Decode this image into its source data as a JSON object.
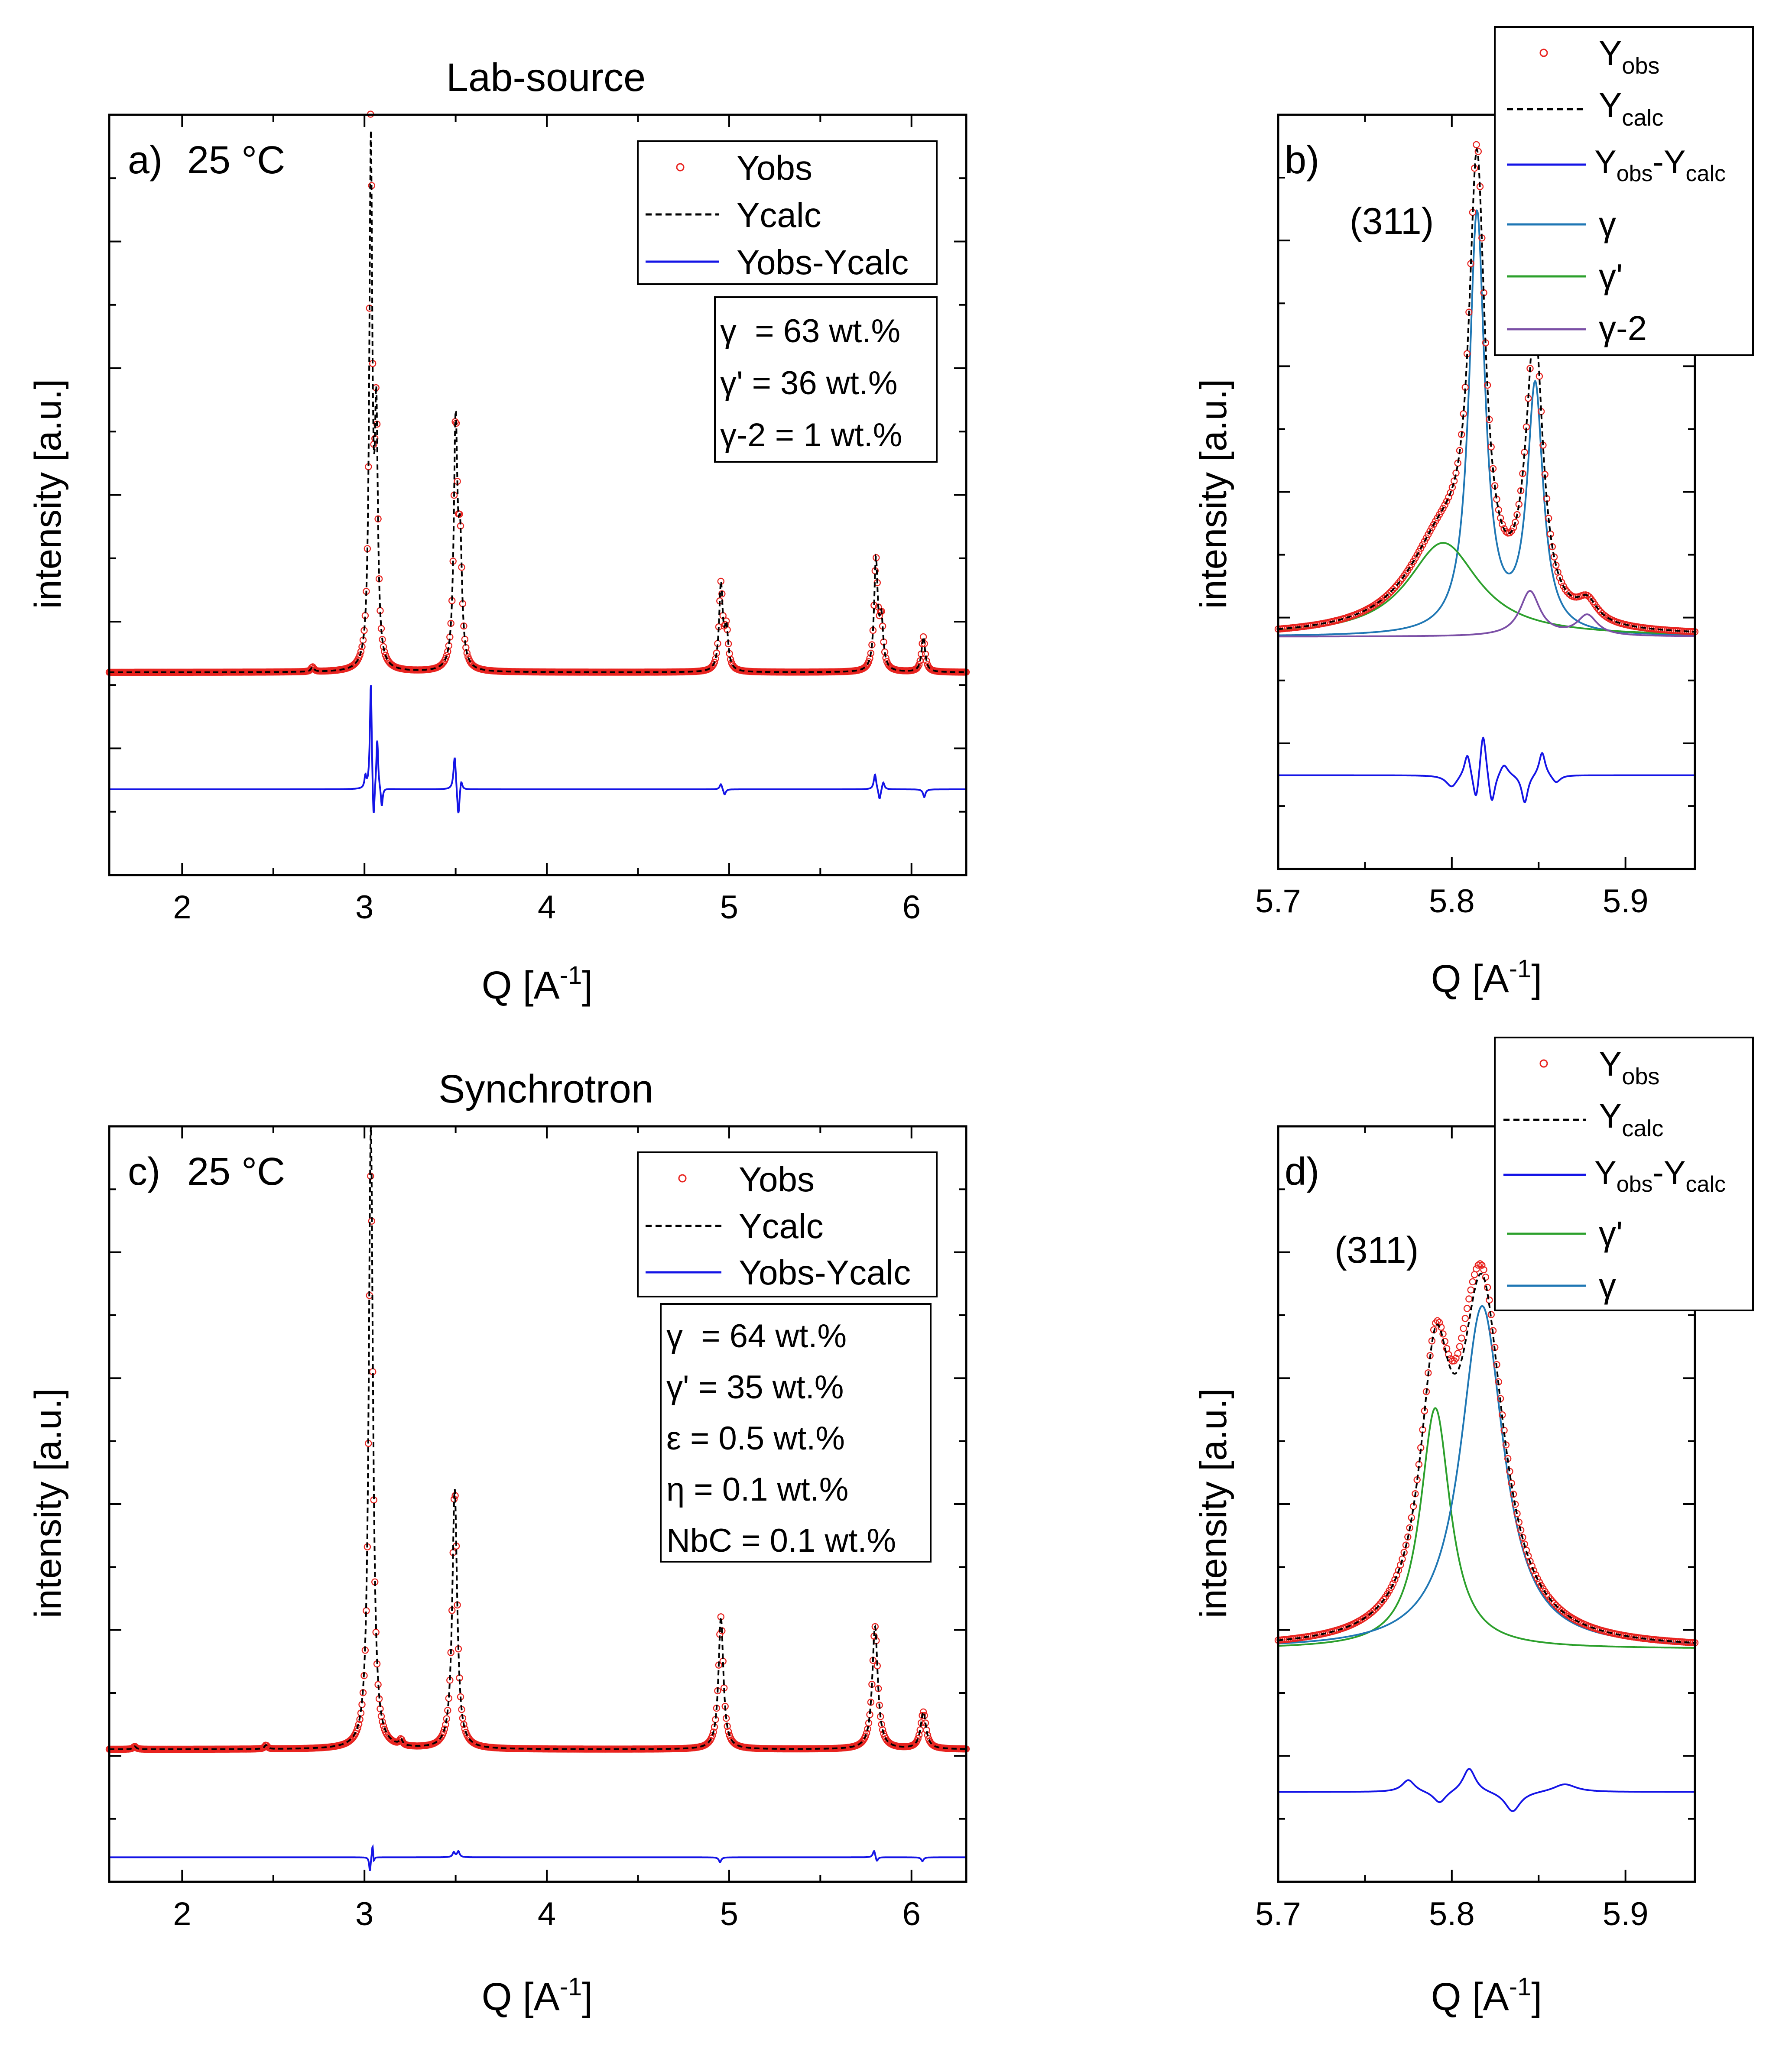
{
  "figure": {
    "titles": {
      "top": "Lab-source",
      "bottom": "Synchrotron"
    },
    "panel_tags": {
      "a": "a)",
      "b": "b)",
      "c": "c)",
      "d": "d)"
    },
    "temperature": "25 °C",
    "peak_label": "(311)",
    "y_axis_label": "intensity [a.u.]",
    "x_axis_label": {
      "main": "Q [A",
      "sup": "-1",
      "close": "]"
    }
  },
  "colors": {
    "obs": "#e8231f",
    "calc": "#000000",
    "diff": "#1414e6",
    "gamma": "#1f77b4",
    "gamma_prime": "#2ca02c",
    "gamma2": "#7b4fa6"
  },
  "legends": {
    "main": {
      "obs": "Yobs",
      "calc": "Ycalc",
      "diff": "Yobs-Ycalc"
    },
    "zoom_b": [
      "Yobs",
      "Ycalc",
      "Yobs-Ycalc",
      "γ",
      "γ'",
      "γ-2"
    ],
    "zoom_d": [
      "Yobs",
      "Ycalc",
      "Yobs-Ycalc",
      "γ'",
      "γ"
    ]
  },
  "phase_boxes": {
    "a": [
      "γ  = 63 wt.%",
      "γ' = 36 wt.%",
      "γ-2 = 1 wt.%"
    ],
    "c": [
      "γ  = 64 wt.%",
      "γ' = 35 wt.%",
      "ε = 0.5 wt.%",
      "η = 0.1 wt.%",
      "NbC = 0.1 wt.%"
    ]
  },
  "chart_data": [
    {
      "id": "a",
      "type": "line",
      "title": "Lab-source",
      "xlabel": "Q [A-1]",
      "ylabel": "intensity [a.u.]",
      "xlim": [
        1.6,
        6.3
      ],
      "ylim": [
        -0.5,
        1.45
      ],
      "xticks": [
        2,
        3,
        4,
        5,
        6
      ],
      "baseline": 0.02,
      "diff_offset": -0.28,
      "peaks": [
        {
          "q": 3.035,
          "h": 1.33,
          "w": 0.01
        },
        {
          "q": 3.065,
          "h": 0.6,
          "w": 0.01
        },
        {
          "q": 3.5,
          "h": 0.62,
          "w": 0.012
        },
        {
          "q": 3.525,
          "h": 0.28,
          "w": 0.012
        },
        {
          "q": 4.955,
          "h": 0.22,
          "w": 0.012
        },
        {
          "q": 4.985,
          "h": 0.1,
          "w": 0.012
        },
        {
          "q": 5.805,
          "h": 0.28,
          "w": 0.012
        },
        {
          "q": 5.835,
          "h": 0.12,
          "w": 0.012
        },
        {
          "q": 6.065,
          "h": 0.09,
          "w": 0.012
        },
        {
          "q": 2.715,
          "h": 0.012,
          "w": 0.01
        }
      ],
      "obs_overshoot": {
        "q": 3.035,
        "extra": 0.08
      },
      "diff_features": [
        {
          "q": 3.035,
          "amp": 0.28,
          "w": 0.006
        },
        {
          "q": 3.05,
          "amp": -0.11,
          "w": 0.006
        },
        {
          "q": 3.07,
          "amp": 0.13,
          "w": 0.006
        },
        {
          "q": 3.095,
          "amp": -0.05,
          "w": 0.006
        },
        {
          "q": 3.005,
          "amp": 0.03,
          "w": 0.006
        },
        {
          "q": 3.495,
          "amp": 0.09,
          "w": 0.008
        },
        {
          "q": 3.515,
          "amp": -0.08,
          "w": 0.008
        },
        {
          "q": 3.53,
          "amp": 0.03,
          "w": 0.008
        },
        {
          "q": 4.955,
          "amp": 0.015,
          "w": 0.008
        },
        {
          "q": 4.975,
          "amp": -0.015,
          "w": 0.008
        },
        {
          "q": 5.8,
          "amp": 0.04,
          "w": 0.008
        },
        {
          "q": 5.825,
          "amp": -0.03,
          "w": 0.008
        },
        {
          "q": 5.845,
          "amp": 0.02,
          "w": 0.008
        },
        {
          "q": 6.07,
          "amp": -0.02,
          "w": 0.008
        }
      ],
      "legend_labels": [
        "Yobs",
        "Ycalc",
        "Yobs-Ycalc"
      ],
      "annotation_lines": [
        "γ  = 63 wt.%",
        "γ' = 36 wt.%",
        "γ-2 = 1 wt.%"
      ]
    },
    {
      "id": "b",
      "type": "line",
      "xlabel": "Q [A-1]",
      "ylabel": "intensity [a.u.]",
      "xlim": [
        5.7,
        5.94
      ],
      "ylim": [
        -0.55,
        1.3
      ],
      "xticks": [
        5.7,
        5.8,
        5.9
      ],
      "baseline": 0.02,
      "diff_offset": -0.32,
      "components": [
        {
          "name": "γ",
          "peaks": [
            {
              "q": 5.8145,
              "h": 1.03,
              "w": 0.0055
            },
            {
              "q": 5.848,
              "h": 0.6,
              "w": 0.0055
            }
          ]
        },
        {
          "name": "γ'",
          "peaks": [
            {
              "q": 5.795,
              "h": 0.23,
              "w": 0.025
            }
          ]
        },
        {
          "name": "γ-2",
          "peaks": [
            {
              "q": 5.845,
              "h": 0.11,
              "w": 0.007
            },
            {
              "q": 5.878,
              "h": 0.05,
              "w": 0.007
            }
          ]
        }
      ],
      "obs_adjust": [
        {
          "q": 5.8145,
          "d": 0.015,
          "w": 0.004
        }
      ],
      "diff_features": [
        {
          "q": 5.8,
          "amp": -0.03,
          "w": 0.004
        },
        {
          "q": 5.809,
          "amp": 0.06,
          "w": 0.0022
        },
        {
          "q": 5.814,
          "amp": -0.08,
          "w": 0.0022
        },
        {
          "q": 5.818,
          "amp": 0.12,
          "w": 0.0022
        },
        {
          "q": 5.823,
          "amp": -0.08,
          "w": 0.0022
        },
        {
          "q": 5.83,
          "amp": 0.03,
          "w": 0.003
        },
        {
          "q": 5.842,
          "amp": -0.07,
          "w": 0.0022
        },
        {
          "q": 5.852,
          "amp": 0.06,
          "w": 0.0022
        },
        {
          "q": 5.86,
          "amp": -0.02,
          "w": 0.003
        }
      ],
      "legend_labels": [
        "Yobs",
        "Ycalc",
        "Yobs-Ycalc",
        "γ",
        "γ'",
        "γ-2"
      ],
      "annotations": [
        "(311)"
      ]
    },
    {
      "id": "c",
      "type": "line",
      "title": "Synchrotron",
      "xlabel": "Q [A-1]",
      "ylabel": "intensity [a.u.]",
      "xlim": [
        1.6,
        6.3
      ],
      "ylim": [
        -0.27,
        1.27
      ],
      "xticks": [
        2,
        3,
        4,
        5,
        6
      ],
      "baseline": 0.0,
      "diff_offset": -0.22,
      "peaks": [
        {
          "q": 3.035,
          "h": 1.27,
          "w": 0.014
        },
        {
          "q": 3.495,
          "h": 0.53,
          "w": 0.016
        },
        {
          "q": 4.955,
          "h": 0.27,
          "w": 0.016
        },
        {
          "q": 5.8,
          "h": 0.25,
          "w": 0.018
        },
        {
          "q": 6.065,
          "h": 0.075,
          "w": 0.018
        },
        {
          "q": 3.2,
          "h": 0.012,
          "w": 0.01
        },
        {
          "q": 2.46,
          "h": 0.008,
          "w": 0.01
        },
        {
          "q": 1.74,
          "h": 0.006,
          "w": 0.01
        }
      ],
      "obs_scale": [
        {
          "q": 3.035,
          "factor": 0.93
        }
      ],
      "diff_features": [
        {
          "q": 3.03,
          "amp": -0.03,
          "w": 0.005
        },
        {
          "q": 3.045,
          "amp": 0.035,
          "w": 0.005
        },
        {
          "q": 3.05,
          "amp": -0.02,
          "w": 0.005
        },
        {
          "q": 3.49,
          "amp": 0.01,
          "w": 0.008
        },
        {
          "q": 3.515,
          "amp": 0.012,
          "w": 0.008
        },
        {
          "q": 4.95,
          "amp": -0.01,
          "w": 0.008
        },
        {
          "q": 5.795,
          "amp": 0.015,
          "w": 0.008
        },
        {
          "q": 5.81,
          "amp": -0.01,
          "w": 0.008
        },
        {
          "q": 6.06,
          "amp": -0.008,
          "w": 0.008
        }
      ],
      "legend_labels": [
        "Yobs",
        "Ycalc",
        "Yobs-Ycalc"
      ],
      "annotation_lines": [
        "γ  = 64 wt.%",
        "γ' = 35 wt.%",
        "ε = 0.5 wt.%",
        "η = 0.1 wt.%",
        "NbC = 0.1 wt.%"
      ]
    },
    {
      "id": "d",
      "type": "line",
      "xlabel": "Q [A-1]",
      "ylabel": "intensity [a.u.]",
      "xlim": [
        5.7,
        5.94
      ],
      "ylim": [
        -0.55,
        1.3
      ],
      "xticks": [
        5.7,
        5.8,
        5.9
      ],
      "baseline": 0.02,
      "diff_offset": -0.33,
      "components": [
        {
          "name": "γ'",
          "peaks": [
            {
              "q": 5.7905,
              "h": 0.59,
              "w": 0.0105
            }
          ]
        },
        {
          "name": "γ",
          "peaks": [
            {
              "q": 5.8175,
              "h": 0.84,
              "w": 0.015
            }
          ]
        }
      ],
      "obs_adjust": [
        {
          "q": 5.808,
          "d": 0.06,
          "w": 0.007
        }
      ],
      "diff_features": [
        {
          "q": 5.775,
          "amp": 0.03,
          "w": 0.0045
        },
        {
          "q": 5.793,
          "amp": -0.03,
          "w": 0.0045
        },
        {
          "q": 5.81,
          "amp": 0.06,
          "w": 0.0045
        },
        {
          "q": 5.835,
          "amp": -0.05,
          "w": 0.0055
        },
        {
          "q": 5.865,
          "amp": 0.02,
          "w": 0.008
        }
      ],
      "legend_labels": [
        "Yobs",
        "Ycalc",
        "Yobs-Ycalc",
        "γ'",
        "γ"
      ],
      "annotations": [
        "(311)"
      ]
    }
  ]
}
